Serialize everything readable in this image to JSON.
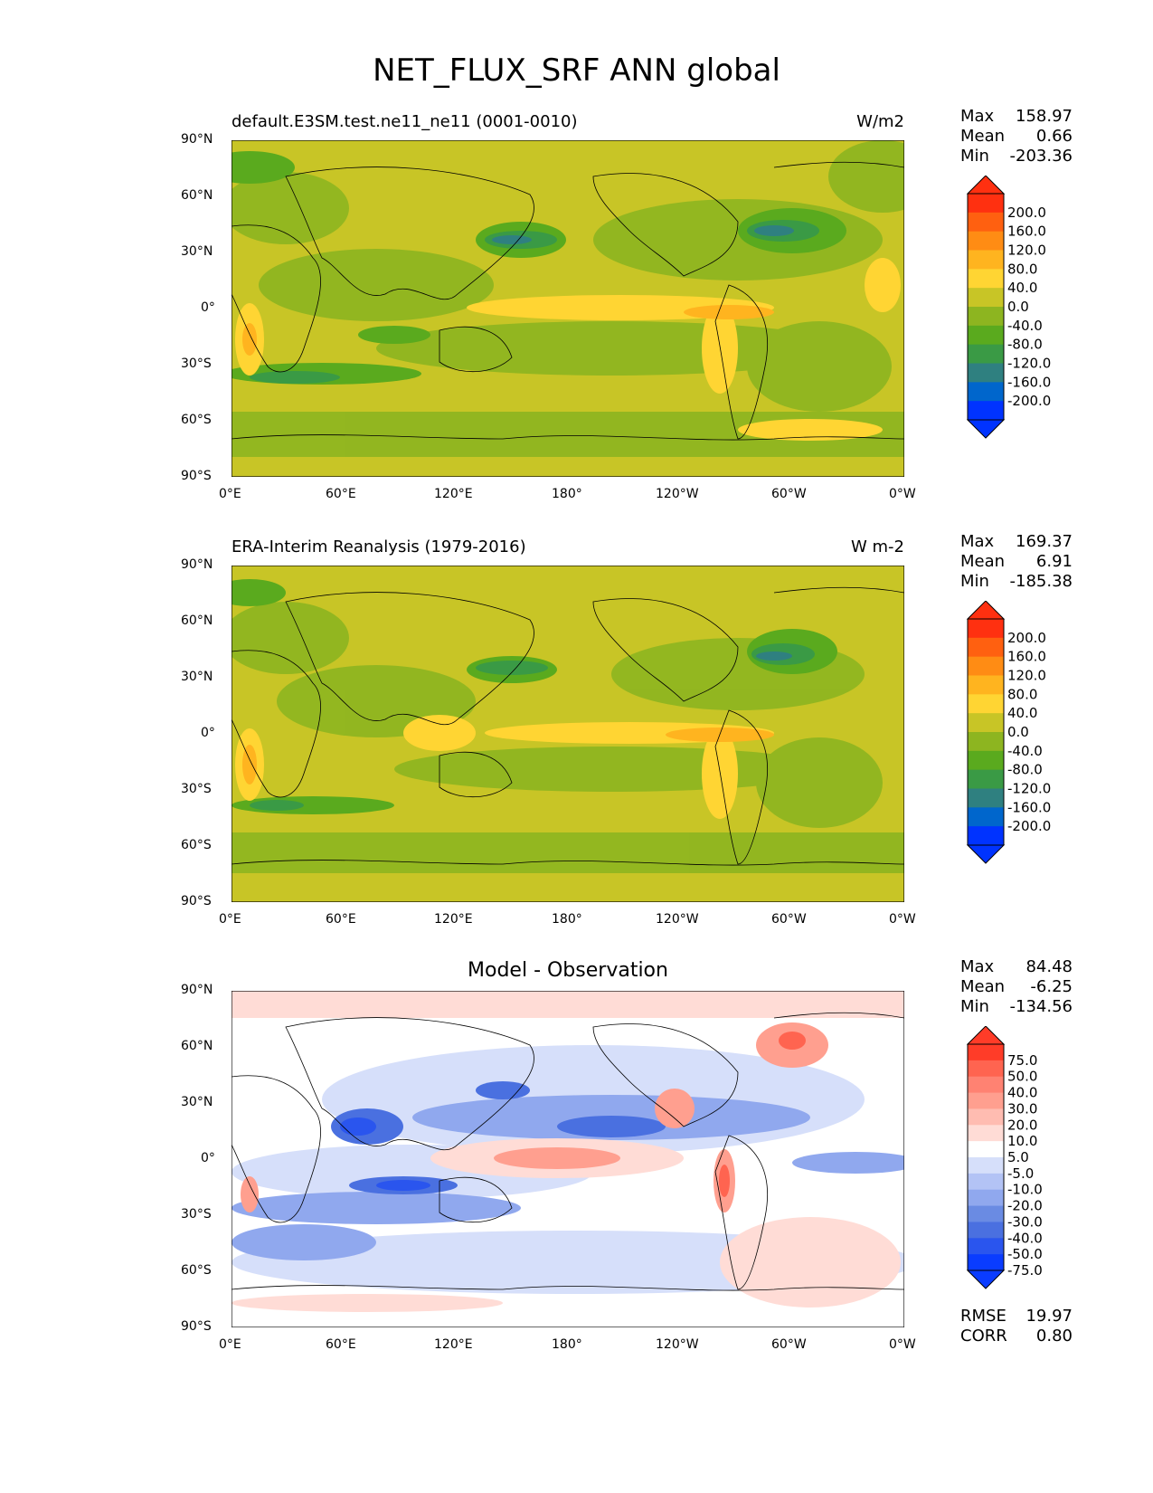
{
  "title": "NET_FLUX_SRF ANN global",
  "x_ticks": [
    "0°E",
    "60°E",
    "120°E",
    "180°",
    "120°W",
    "60°W",
    "0°W"
  ],
  "y_ticks": [
    "90°N",
    "60°N",
    "30°N",
    "0°",
    "30°S",
    "60°S",
    "90°S"
  ],
  "colors": {
    "abs_scale": [
      "#0033ff",
      "#0066cc",
      "#2f8080",
      "#3a9a45",
      "#5aaa1e",
      "#8db520",
      "#c8c526",
      "#ffd533",
      "#ffb41f",
      "#ff8c14",
      "#ff6010",
      "#ff3010"
    ],
    "diff_scale": [
      "#0a3cff",
      "#2a55ee",
      "#4a70e0",
      "#6a8be3",
      "#90a8ee",
      "#b3c3f5",
      "#d6dffa",
      "#ffffff",
      "#ffdcd6",
      "#ffbcb1",
      "#ff9f8f",
      "#ff8272",
      "#ff6450",
      "#ff3c28"
    ]
  },
  "panels": [
    {
      "id": "model",
      "title_left": "default.E3SM.test.ne11_ne11 (0001-0010)",
      "title_right": "W/m2",
      "title_center": "",
      "stats": {
        "max_label": "Max",
        "max": "158.97",
        "mean_label": "Mean",
        "mean": "0.66",
        "min_label": "Min",
        "min": "-203.36"
      },
      "colorbar_labels": [
        "200.0",
        "160.0",
        "120.0",
        "80.0",
        "40.0",
        "0.0",
        "-40.0",
        "-80.0",
        "-120.0",
        "-160.0",
        "-200.0"
      ],
      "scale": "abs"
    },
    {
      "id": "obs",
      "title_left": "ERA-Interim Reanalysis (1979-2016)",
      "title_right": "W m-2",
      "title_center": "",
      "stats": {
        "max_label": "Max",
        "max": "169.37",
        "mean_label": "Mean",
        "mean": "6.91",
        "min_label": "Min",
        "min": "-185.38"
      },
      "colorbar_labels": [
        "200.0",
        "160.0",
        "120.0",
        "80.0",
        "40.0",
        "0.0",
        "-40.0",
        "-80.0",
        "-120.0",
        "-160.0",
        "-200.0"
      ],
      "scale": "abs"
    },
    {
      "id": "diff",
      "title_left": "",
      "title_right": "",
      "title_center": "Model - Observation",
      "stats": {
        "max_label": "Max",
        "max": "84.48",
        "mean_label": "Mean",
        "mean": "-6.25",
        "min_label": "Min",
        "min": "-134.56"
      },
      "colorbar_labels": [
        "75.0",
        "50.0",
        "40.0",
        "30.0",
        "20.0",
        "10.0",
        "5.0",
        "-5.0",
        "-10.0",
        "-20.0",
        "-30.0",
        "-40.0",
        "-50.0",
        "-75.0"
      ],
      "scale": "diff",
      "rmse_label": "RMSE",
      "rmse": "19.97",
      "corr_label": "CORR",
      "corr": "0.80"
    }
  ]
}
